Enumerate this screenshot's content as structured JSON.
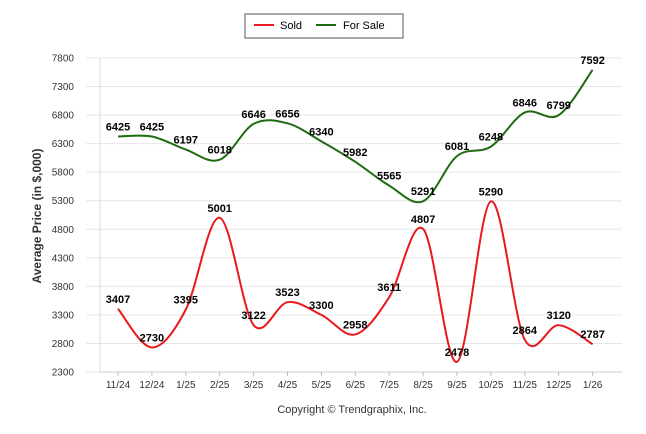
{
  "chart_data": {
    "type": "line",
    "title": "",
    "xlabel": "",
    "ylabel": "Average Price (in $,000)",
    "ylim": [
      2300,
      7800
    ],
    "yticks": [
      2300,
      2800,
      3300,
      3800,
      4300,
      4800,
      5300,
      5800,
      6300,
      6800,
      7300,
      7800
    ],
    "grid": true,
    "legend_position": "top-center",
    "categories": [
      "11/24",
      "12/24",
      "1/25",
      "2/25",
      "3/25",
      "4/25",
      "5/25",
      "6/25",
      "7/25",
      "8/25",
      "9/25",
      "10/25",
      "11/25",
      "12/25",
      "1/26"
    ],
    "series": [
      {
        "name": "Sold",
        "color": "#e8191c",
        "values": [
          3407,
          2730,
          3395,
          5001,
          3122,
          3523,
          3300,
          2958,
          3611,
          4807,
          2478,
          5290,
          2864,
          3120,
          2787
        ]
      },
      {
        "name": "For Sale",
        "color": "#1f6b12",
        "values": [
          6425,
          6425,
          6197,
          6018,
          6646,
          6656,
          6340,
          5982,
          5565,
          5291,
          6081,
          6248,
          6846,
          6799,
          7592
        ]
      }
    ],
    "footer": "Copyright © Trendgraphix, Inc."
  }
}
